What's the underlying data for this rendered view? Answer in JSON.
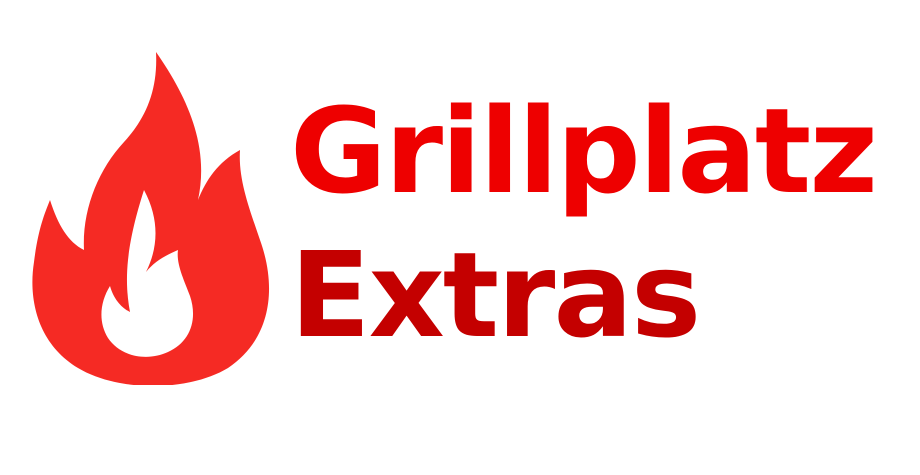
{
  "logo": {
    "icon": "flame-icon",
    "line1": "Grillplatz",
    "line2": "Extras",
    "colors": {
      "flame": "#f52a24",
      "line1": "#ee0000",
      "line2": "#c40000",
      "background": "#ffffff"
    }
  }
}
